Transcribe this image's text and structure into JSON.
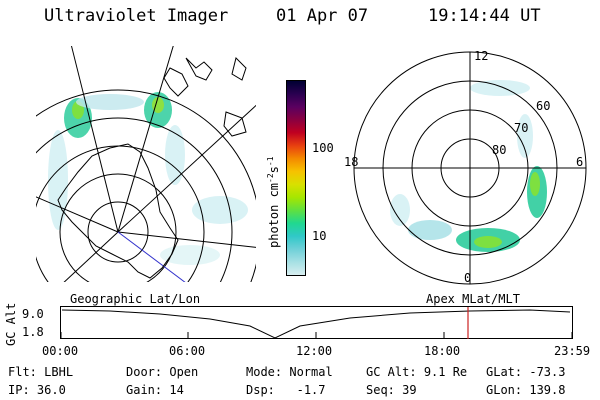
{
  "header": {
    "title": "Ultraviolet Imager",
    "date": "01 Apr 07",
    "time": "19:14:44 UT"
  },
  "left_map": {
    "caption": "Geographic Lat/Lon"
  },
  "right_map": {
    "caption": "Apex MLat/MLT",
    "mlt_labels": {
      "top": "12",
      "left": "18",
      "right": "6",
      "bottom": "0"
    },
    "lat_labels": [
      "60",
      "70",
      "80"
    ]
  },
  "colorbar": {
    "unit_label": "photon cm",
    "unit_exp1": "-2",
    "unit_s": "s",
    "unit_exp2": "-1",
    "tick_100": "100",
    "tick_10": "10",
    "colors": [
      "#000033",
      "#2a0050",
      "#5a0060",
      "#8a0040",
      "#c00020",
      "#e84010",
      "#f48a00",
      "#f6c200",
      "#d8e000",
      "#a6e600",
      "#60e040",
      "#20d890",
      "#30c8c8",
      "#6fd0d8",
      "#a6e0e4",
      "#d8eef0"
    ]
  },
  "altitude_plot": {
    "ylabel": "GC Alt",
    "ymax_label": "9.0",
    "ymin_label": "1.8",
    "x_ticks": [
      "00:00",
      "06:00",
      "12:00",
      "18:00",
      "23:59"
    ]
  },
  "status": {
    "flt_label": "Flt:",
    "flt_value": "LBHL",
    "ip_label": "IP:",
    "ip_value": "36.0",
    "door_label": "Door:",
    "door_value": "Open",
    "gain_label": "Gain:",
    "gain_value": "14",
    "mode_label": "Mode:",
    "mode_value": "Normal",
    "dsp_label": "Dsp:",
    "dsp_value": "-1.7",
    "gcalt_label": "GC Alt:",
    "gcalt_value": "9.1 Re",
    "seq_label": "Seq:",
    "seq_value": "39",
    "glat_label": "GLat:",
    "glat_value": "-73.3",
    "glon_label": "GLon:",
    "glon_value": "139.8"
  }
}
